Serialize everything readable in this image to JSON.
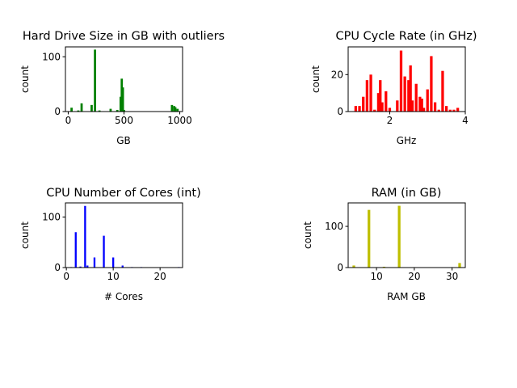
{
  "chart_data": [
    {
      "type": "bar",
      "title": "Hard Drive Size in GB with outliers",
      "xlabel": "GB",
      "ylabel": "count",
      "color": "#008000",
      "xlim": [
        -25,
        1025
      ],
      "ylim": [
        0,
        118
      ],
      "xticks": [
        0,
        500,
        1000
      ],
      "yticks": [
        0,
        100
      ],
      "bin_width": 20,
      "x": [
        30,
        90,
        120,
        210,
        240,
        280,
        380,
        440,
        470,
        480,
        490,
        500,
        930,
        950,
        960,
        980
      ],
      "values": [
        7,
        2,
        15,
        12,
        113,
        2,
        5,
        3,
        27,
        60,
        44,
        3,
        12,
        10,
        8,
        5
      ]
    },
    {
      "type": "bar",
      "title": "CPU Cycle Rate (in GHz)",
      "xlabel": "GHz",
      "ylabel": "count",
      "color": "#ff0000",
      "xlim": [
        0.9,
        4.0
      ],
      "ylim": [
        0,
        35
      ],
      "xticks": [
        2,
        4
      ],
      "yticks": [
        0,
        20
      ],
      "bin_width": 0.07,
      "x": [
        1.1,
        1.2,
        1.3,
        1.4,
        1.5,
        1.6,
        1.7,
        1.75,
        1.8,
        1.9,
        2.0,
        2.2,
        2.3,
        2.4,
        2.5,
        2.55,
        2.6,
        2.7,
        2.8,
        2.85,
        2.9,
        3.0,
        3.1,
        3.2,
        3.3,
        3.4,
        3.5,
        3.6,
        3.7,
        3.8
      ],
      "values": [
        3,
        3,
        8,
        17,
        20,
        1,
        10,
        17,
        5,
        11,
        2,
        6,
        33,
        19,
        17,
        25,
        6,
        15,
        8,
        7,
        2,
        12,
        30,
        5,
        1,
        22,
        3,
        1,
        1,
        2
      ]
    },
    {
      "type": "bar",
      "title": "CPU Number of Cores (int)",
      "xlabel": "# Cores",
      "ylabel": "count",
      "color": "#0000ff",
      "xlim": [
        -0.2,
        24.8
      ],
      "ylim": [
        0,
        128
      ],
      "xticks": [
        0,
        10,
        20
      ],
      "yticks": [
        0,
        100
      ],
      "bin_width": 0.4,
      "x": [
        1,
        2,
        3,
        4,
        4.5,
        6,
        8,
        10,
        12,
        14,
        16,
        24
      ],
      "values": [
        1,
        70,
        2,
        122,
        4,
        20,
        63,
        20,
        4,
        1,
        1,
        1
      ]
    },
    {
      "type": "bar",
      "title": "RAM (in GB)",
      "xlabel": "RAM GB",
      "ylabel": "count",
      "color": "#bfbf00",
      "xlim": [
        2.5,
        33.5
      ],
      "ylim": [
        0,
        157
      ],
      "xticks": [
        10,
        20,
        30
      ],
      "yticks": [
        0,
        100
      ],
      "bin_width": 0.7,
      "x": [
        4,
        8,
        10,
        12,
        16,
        20,
        24,
        32
      ],
      "values": [
        5,
        140,
        1,
        2,
        150,
        1,
        1,
        11
      ]
    }
  ]
}
